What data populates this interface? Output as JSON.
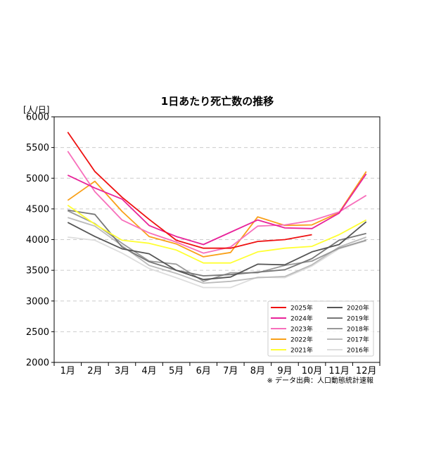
{
  "chart_data": {
    "type": "line",
    "title": "1日あたり死亡数の推移",
    "ylabel": "[人/日]",
    "source_note": "※ データ出典：人口動態統計速報",
    "categories": [
      "1月",
      "2月",
      "3月",
      "4月",
      "5月",
      "6月",
      "7月",
      "8月",
      "9月",
      "10月",
      "11月",
      "12月"
    ],
    "ylim": [
      2000,
      6000
    ],
    "yticks": [
      2000,
      2500,
      3000,
      3500,
      4000,
      4500,
      5000,
      5500,
      6000
    ],
    "grid": "horizontal-dashed",
    "legend_position": "lower-right",
    "series": [
      {
        "name": "2025年",
        "color": "#ee1111",
        "values": [
          5750,
          5110,
          4690,
          4330,
          3990,
          3860,
          3860,
          3970,
          4000,
          4080,
          null,
          null
        ]
      },
      {
        "name": "2024年",
        "color": "#e8239a",
        "values": [
          5050,
          4840,
          4660,
          4230,
          4050,
          3920,
          4120,
          4320,
          4190,
          4180,
          4430,
          5070
        ]
      },
      {
        "name": "2023年",
        "color": "#f76fbb",
        "values": [
          5440,
          4780,
          4320,
          4110,
          3960,
          3780,
          3880,
          4220,
          4240,
          4310,
          4450,
          4720
        ]
      },
      {
        "name": "2022年",
        "color": "#f9a018",
        "values": [
          4640,
          4950,
          4460,
          4050,
          3930,
          3720,
          3790,
          4370,
          4230,
          4240,
          4440,
          5110
        ]
      },
      {
        "name": "2021年",
        "color": "#ffff33",
        "values": [
          4560,
          4250,
          3990,
          3940,
          3830,
          3620,
          3620,
          3800,
          3860,
          3890,
          4080,
          4320
        ]
      },
      {
        "name": "2020年",
        "color": "#555555",
        "values": [
          4280,
          4050,
          3850,
          3770,
          3500,
          3350,
          3390,
          3600,
          3590,
          3800,
          3920,
          4290
        ]
      },
      {
        "name": "2019年",
        "color": "#777777",
        "values": [
          4480,
          4410,
          3880,
          3640,
          3500,
          3410,
          3430,
          3470,
          3510,
          3690,
          3990,
          4100
        ]
      },
      {
        "name": "2018年",
        "color": "#999999",
        "values": [
          4470,
          4260,
          3940,
          3650,
          3600,
          3320,
          3460,
          3460,
          3580,
          3650,
          3860,
          3990
        ]
      },
      {
        "name": "2017年",
        "color": "#bbbbbb",
        "values": [
          4360,
          4220,
          3900,
          3580,
          3450,
          3290,
          3320,
          3380,
          3400,
          3590,
          3880,
          4040
        ]
      },
      {
        "name": "2016年",
        "color": "#dddddd",
        "values": [
          4040,
          3990,
          3780,
          3530,
          3380,
          3220,
          3220,
          3390,
          3380,
          3570,
          3850,
          3980
        ]
      }
    ]
  }
}
